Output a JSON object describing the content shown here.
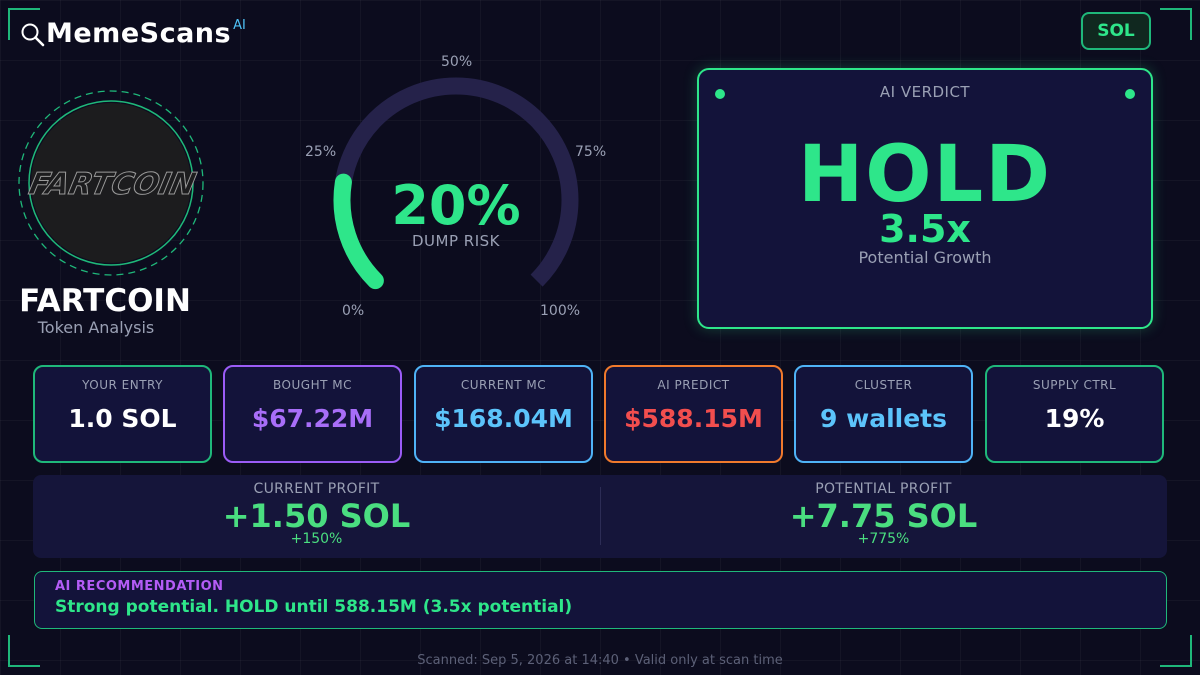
{
  "brand": {
    "name": "MemeScans",
    "superscript": "AI",
    "icon": "magnifier-icon"
  },
  "chain_badge": "SOL",
  "token": {
    "logo_text": "FARTCOIN",
    "name": "FARTCOIN",
    "subtitle": "Token Analysis"
  },
  "dump_risk": {
    "value_text": "20%",
    "value": 0.2,
    "label": "DUMP RISK",
    "ticks": [
      "0%",
      "25%",
      "50%",
      "75%",
      "100%"
    ],
    "track_color": "#25224a",
    "fill_color": "#2ee68a"
  },
  "verdict": {
    "label": "AI VERDICT",
    "decision": "HOLD",
    "multiplier": "3.5x",
    "subtitle": "Potential Growth",
    "color": "#2ee68a"
  },
  "stats": [
    {
      "label": "YOUR ENTRY",
      "value": "1.0 SOL",
      "border": "#1fb87a",
      "color": "#ffffff"
    },
    {
      "label": "BOUGHT MC",
      "value": "$67.22M",
      "border": "#9b5cf6",
      "color": "#a86ef8"
    },
    {
      "label": "CURRENT MC",
      "value": "$168.04M",
      "border": "#4fb3f6",
      "color": "#5cc4fb"
    },
    {
      "label": "AI PREDICT",
      "value": "$588.15M",
      "border": "#f07a2c",
      "color": "#f24e4e"
    },
    {
      "label": "CLUSTER",
      "value": "9 wallets",
      "border": "#4fb3f6",
      "color": "#5cc4fb"
    },
    {
      "label": "SUPPLY CTRL",
      "value": "19%",
      "border": "#1fb87a",
      "color": "#ffffff"
    }
  ],
  "profit": {
    "current": {
      "label": "CURRENT PROFIT",
      "value": "+1.50 SOL",
      "pct": "+150%"
    },
    "potential": {
      "label": "POTENTIAL PROFIT",
      "value": "+7.75 SOL",
      "pct": "+775%"
    }
  },
  "recommendation": {
    "title": "AI RECOMMENDATION",
    "text": "Strong potential. HOLD until 588.15M (3.5x potential)"
  },
  "footer": "Scanned: Sep 5, 2026 at 14:40  •  Valid only at scan time"
}
